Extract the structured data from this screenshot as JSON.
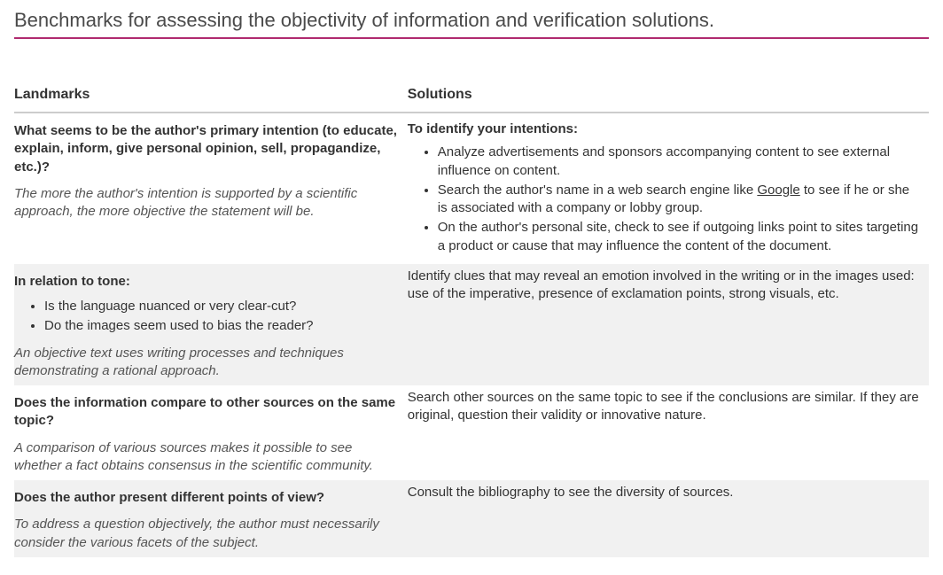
{
  "title": "Benchmarks for assessing the objectivity of information and verification solutions.",
  "headers": {
    "left": "Landmarks",
    "right": "Solutions"
  },
  "rows": [
    {
      "landmark": {
        "question": "What seems to be the author's primary intention (to educate, explain, inform, give personal opinion, sell, propagandize, etc.)?",
        "note": "The more the author's intention is supported by a scientific approach, the more objective the statement will be."
      },
      "solution": {
        "intro": "To identify your intentions:",
        "bullets": [
          "Analyze advertisements and sponsors accompanying content to see external influence on content.",
          {
            "pre": "Search the author's name in a web search engine like ",
            "link": "Google",
            "post": " to see if he or she is associated with a company or lobby group."
          },
          "On the author's personal site, check to see if outgoing links point to sites targeting a product or cause that may influence the content of the document."
        ]
      }
    },
    {
      "landmark": {
        "question": "In relation to tone:",
        "bullets": [
          "Is the language nuanced or very clear-cut?",
          "Do the images seem used to bias the reader?"
        ],
        "note": "An objective text uses writing processes and techniques demonstrating a rational approach."
      },
      "solution": {
        "text": "Identify clues that may reveal an emotion involved in the writing or in the images used: use of the imperative, presence of exclamation points, strong visuals, etc."
      }
    },
    {
      "landmark": {
        "question": "Does the information compare to other sources on the same topic?",
        "note": "A comparison of various sources makes it possible to see whether a fact obtains consensus in the scientific community."
      },
      "solution": {
        "text": "Search other sources on the same topic to see if the conclusions are similar. If they are original, question their validity or innovative nature."
      }
    },
    {
      "landmark": {
        "question": "Does the author present different points of view?",
        "note": "To address a question objectively, the author must necessarily consider the various facets of the subject."
      },
      "solution": {
        "text": "Consult the bibliography to see the diversity of sources."
      }
    }
  ],
  "colors": {
    "accent": "#b02a6f",
    "header_rule": "#cccccc",
    "alt_row_bg": "#f1f1f1",
    "text": "#333333",
    "note_text": "#555555",
    "background": "#ffffff"
  }
}
